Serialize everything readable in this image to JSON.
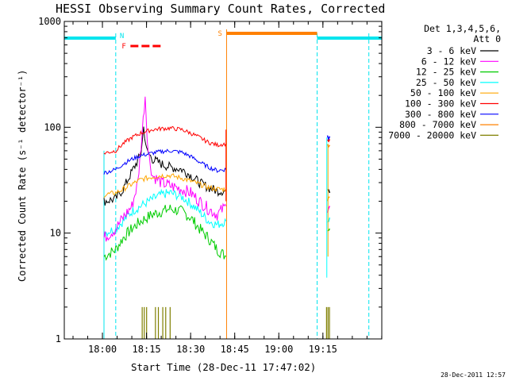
{
  "chart_data": {
    "type": "line",
    "title": "HESSI Observing Summary Count Rates, Corrected",
    "xlabel": "Start Time (28-Dec-11 17:47:02)",
    "ylabel": "Corrected Count Rate (s⁻¹ detector⁻¹)",
    "yscale": "log",
    "ylim": [
      1,
      1000
    ],
    "xlim_minutes_after_17_47_02": [
      0,
      108
    ],
    "x_ticks": [
      "18:00",
      "18:15",
      "18:30",
      "18:45",
      "19:00",
      "19:15"
    ],
    "x_tick_minutes": [
      12.97,
      27.97,
      42.97,
      57.97,
      72.97,
      87.97
    ],
    "y_ticks": [
      "1",
      "10",
      "100",
      "1000"
    ],
    "y_tick_values": [
      1,
      10,
      100,
      1000
    ],
    "legend_title": [
      "Det 1,3,4,5,6,",
      "Att 0"
    ],
    "legend_position": "right",
    "footer": "28-Dec-2011 12:57",
    "colors": {
      "axis": "#000000",
      "night": "#00e5ee",
      "saa": "#ff8000",
      "flare": "#ff0000"
    },
    "markers": {
      "night_label": "N",
      "saa_label": "S",
      "flare_label": "F",
      "night_lines_minutes": [
        17.5,
        86.0,
        103.6
      ],
      "saa_line_minutes": 55.2
    },
    "bars": {
      "night": [
        [
          0,
          17.5
        ],
        [
          86.0,
          108
        ]
      ],
      "saa": [
        [
          55.2,
          86.0
        ]
      ],
      "flare": [
        [
          22.5,
          33.3
        ]
      ]
    },
    "series": [
      {
        "name": "3 - 6 keV",
        "color": "#000000",
        "x": [
          13.5,
          17.5,
          20,
          23,
          26,
          27,
          28,
          30,
          33,
          36,
          40,
          43,
          46,
          49,
          52,
          55
        ],
        "y": [
          20,
          21,
          26,
          38,
          55,
          100,
          60,
          50,
          45,
          42,
          40,
          35,
          30,
          27,
          25,
          25
        ]
      },
      {
        "name": "6 - 12 keV",
        "color": "#ff00ff",
        "x": [
          13.5,
          17.5,
          20,
          23,
          25,
          26.5,
          27.5,
          28.5,
          30,
          33,
          36,
          40,
          43,
          46,
          49,
          52,
          55
        ],
        "y": [
          9,
          11,
          14,
          18,
          30,
          90,
          200,
          60,
          35,
          30,
          28,
          26,
          24,
          20,
          17,
          15,
          18
        ]
      },
      {
        "name": "12 - 25 keV",
        "color": "#00cc00",
        "x": [
          13.5,
          17.5,
          20,
          23,
          26,
          30,
          33,
          36,
          40,
          43,
          46,
          49,
          52,
          55
        ],
        "y": [
          6,
          7,
          9,
          11,
          13,
          15,
          16,
          17,
          16,
          14,
          11,
          9,
          7,
          6
        ]
      },
      {
        "name": "25 - 50 keV",
        "color": "#00ffff",
        "x": [
          13.5,
          17.5,
          20,
          23,
          26,
          30,
          33,
          36,
          40,
          43,
          46,
          49,
          52,
          55
        ],
        "y": [
          10,
          11,
          13,
          16,
          18,
          21,
          23,
          24,
          22,
          19,
          16,
          13,
          12,
          13
        ]
      },
      {
        "name": "50 - 100 keV",
        "color": "#ffa500",
        "x": [
          13.5,
          17.5,
          20,
          23,
          26,
          30,
          33,
          36,
          40,
          43,
          46,
          49,
          52,
          55
        ],
        "y": [
          23,
          24,
          26,
          29,
          32,
          34,
          35,
          35,
          33,
          31,
          29,
          27,
          26,
          26
        ]
      },
      {
        "name": "100 - 300 keV",
        "color": "#ff0000",
        "x": [
          13.5,
          17.5,
          20,
          23,
          26,
          30,
          33,
          36,
          40,
          43,
          46,
          49,
          52,
          55
        ],
        "y": [
          57,
          60,
          70,
          80,
          88,
          95,
          97,
          98,
          95,
          88,
          80,
          72,
          68,
          70
        ]
      },
      {
        "name": "300 - 800 keV",
        "color": "#0000ff",
        "x": [
          13.5,
          17.5,
          20,
          23,
          26,
          30,
          33,
          36,
          40,
          43,
          46,
          49,
          52,
          55
        ],
        "y": [
          37,
          40,
          45,
          50,
          54,
          57,
          59,
          60,
          58,
          53,
          47,
          42,
          39,
          40
        ]
      },
      {
        "name": "800 - 7000 keV",
        "color": "#ff8000",
        "x": [],
        "y": []
      },
      {
        "name": "7000 - 20000 keV",
        "color": "#808000",
        "x": [
          13.5,
          55
        ],
        "y": [
          1.2,
          1.2
        ]
      }
    ],
    "late_data": [
      {
        "color": "#0000ff",
        "x": [
          89.5,
          90.3
        ],
        "y": [
          80,
          82
        ]
      },
      {
        "color": "#ff0000",
        "x": [
          89.5,
          90.3
        ],
        "y": [
          75,
          77
        ]
      },
      {
        "color": "#ff8000",
        "x": [
          89.5,
          90.3
        ],
        "y": [
          65,
          68
        ]
      },
      {
        "color": "#000000",
        "x": [
          89.5,
          90.3
        ],
        "y": [
          25,
          24
        ]
      },
      {
        "color": "#ffa500",
        "x": [
          89.5,
          90.3
        ],
        "y": [
          20,
          22
        ]
      },
      {
        "color": "#ff00ff",
        "x": [
          89.5,
          90.3
        ],
        "y": [
          16,
          18
        ]
      },
      {
        "color": "#00ffff",
        "x": [
          89.5,
          90.3
        ],
        "y": [
          12,
          14
        ]
      },
      {
        "color": "#00cc00",
        "x": [
          89.5,
          90.3
        ],
        "y": [
          10,
          11
        ]
      }
    ]
  }
}
